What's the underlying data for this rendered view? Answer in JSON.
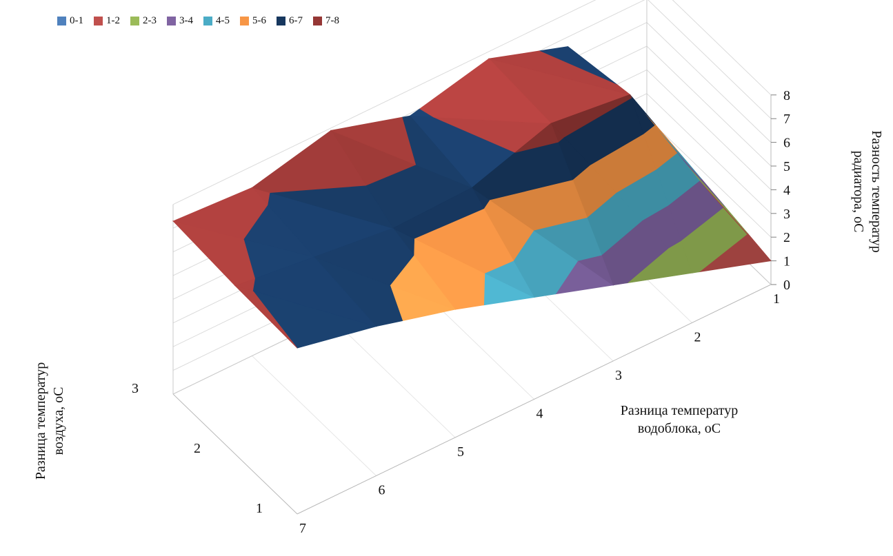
{
  "chart_data": {
    "type": "surface",
    "title": "",
    "legend_position": "top-left",
    "grid": true,
    "x_axis": {
      "label": "Разница температур\nводоблока, оС",
      "categories": [
        "1",
        "2",
        "3",
        "4",
        "5",
        "6",
        "7"
      ]
    },
    "depth_axis": {
      "label": "Разница температур\nвоздуха, оС",
      "categories": [
        "1",
        "2",
        "3"
      ]
    },
    "value_axis": {
      "label": "Разность температур\nрадиатора, оС",
      "min": 0,
      "max": 8,
      "ticks": [
        "0",
        "1",
        "2",
        "3",
        "4",
        "5",
        "6",
        "7",
        "8"
      ]
    },
    "legend": [
      {
        "label": "0-1",
        "color": "#4F81BD"
      },
      {
        "label": "1-2",
        "color": "#C0504D"
      },
      {
        "label": "2-3",
        "color": "#9BBB59"
      },
      {
        "label": "3-4",
        "color": "#8064A2"
      },
      {
        "label": "4-5",
        "color": "#4BACC6"
      },
      {
        "label": "5-6",
        "color": "#F79646"
      },
      {
        "label": "6-7",
        "color": "#17375E"
      },
      {
        "label": "7-8",
        "color": "#953735"
      }
    ],
    "series": [
      {
        "name": "1",
        "values": [
          1.0,
          2.1,
          3.2,
          4.3,
          5.4,
          6.3,
          7.0
        ]
      },
      {
        "name": "2",
        "values": [
          1.4,
          7.1,
          7.5,
          6.4,
          6.3,
          6.7,
          7.1
        ]
      },
      {
        "name": "3",
        "values": [
          1.8,
          6.6,
          7.7,
          6.9,
          7.9,
          7.1,
          7.3
        ]
      }
    ]
  }
}
